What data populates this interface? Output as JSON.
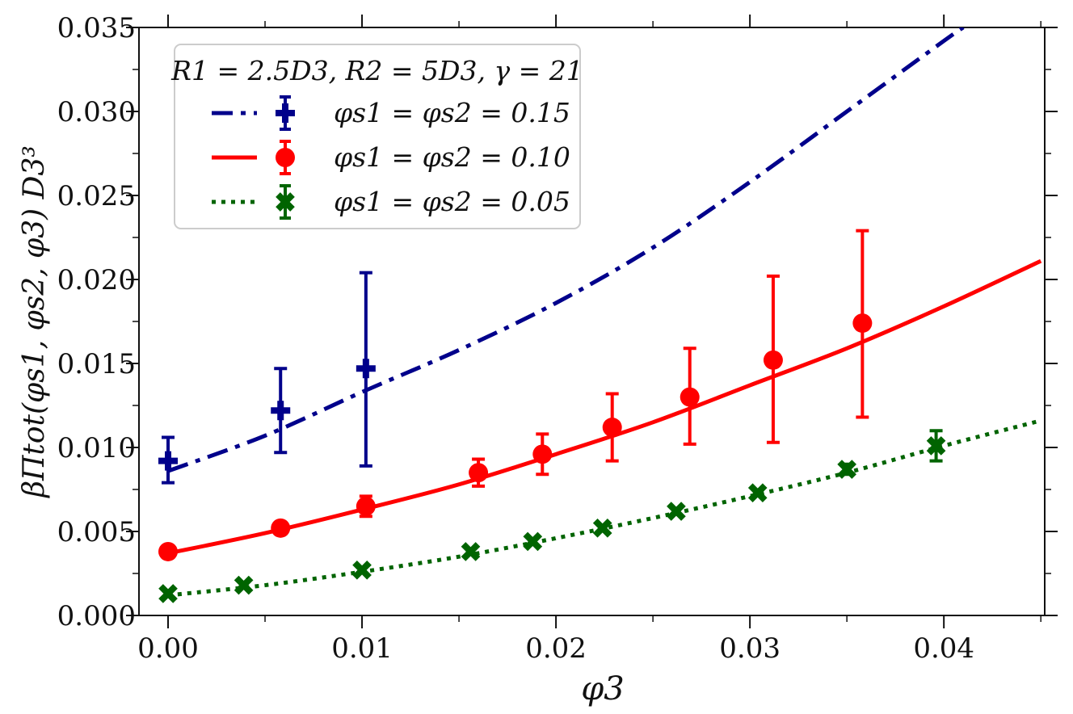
{
  "chart_data": {
    "type": "line",
    "title": "",
    "xlabel": "φ3",
    "ylabel": "βΠtot(φs1, φs2, φ3) D3³",
    "xlim": [
      -0.0015,
      0.0452
    ],
    "ylim": [
      0.0,
      0.035
    ],
    "xticks": [
      0.0,
      0.01,
      0.02,
      0.03,
      0.04
    ],
    "xtick_labels": [
      "0.00",
      "0.01",
      "0.02",
      "0.03",
      "0.04"
    ],
    "yticks": [
      0.0,
      0.005,
      0.01,
      0.015,
      0.02,
      0.025,
      0.03,
      0.035
    ],
    "ytick_labels": [
      "0.000",
      "0.005",
      "0.010",
      "0.015",
      "0.020",
      "0.025",
      "0.030",
      "0.035"
    ],
    "legend_title": "R1 = 2.5D3, R2 = 5D3, γ = 21",
    "legend_position": "top-left",
    "series": [
      {
        "name": "φs1 = φs2 = 0.15",
        "color": "#00008b",
        "marker": "plus",
        "line_style": "dashdot",
        "points": [
          {
            "x": 0.0,
            "y": 0.0092,
            "ylo": 0.0079,
            "yhi": 0.0106
          },
          {
            "x": 0.0058,
            "y": 0.0122,
            "ylo": 0.0097,
            "yhi": 0.0147
          },
          {
            "x": 0.0102,
            "y": 0.0147,
            "ylo": 0.0089,
            "yhi": 0.0204
          }
        ],
        "curve": {
          "x": [
            0.0,
            0.005,
            0.01,
            0.015,
            0.02,
            0.025,
            0.03,
            0.035,
            0.04,
            0.041
          ],
          "y": [
            0.0086,
            0.0107,
            0.0133,
            0.0158,
            0.0186,
            0.0219,
            0.0258,
            0.03,
            0.0342,
            0.035
          ]
        }
      },
      {
        "name": "φs1 = φs2 = 0.10",
        "color": "#ff0000",
        "marker": "circle",
        "line_style": "solid",
        "points": [
          {
            "x": 0.0,
            "y": 0.0038,
            "ylo": 0.0038,
            "yhi": 0.0038
          },
          {
            "x": 0.0058,
            "y": 0.0052,
            "ylo": 0.0052,
            "yhi": 0.0052
          },
          {
            "x": 0.0102,
            "y": 0.0065,
            "ylo": 0.0059,
            "yhi": 0.0071
          },
          {
            "x": 0.016,
            "y": 0.0085,
            "ylo": 0.0077,
            "yhi": 0.0093
          },
          {
            "x": 0.0193,
            "y": 0.0096,
            "ylo": 0.0084,
            "yhi": 0.0108
          },
          {
            "x": 0.0229,
            "y": 0.0112,
            "ylo": 0.0092,
            "yhi": 0.0132
          },
          {
            "x": 0.0269,
            "y": 0.013,
            "ylo": 0.0102,
            "yhi": 0.0159
          },
          {
            "x": 0.0312,
            "y": 0.0152,
            "ylo": 0.0103,
            "yhi": 0.0202
          },
          {
            "x": 0.0358,
            "y": 0.0174,
            "ylo": 0.0118,
            "yhi": 0.0229
          }
        ],
        "curve": {
          "x": [
            0.0,
            0.005,
            0.01,
            0.015,
            0.02,
            0.025,
            0.03,
            0.035,
            0.04,
            0.045
          ],
          "y": [
            0.0037,
            0.0049,
            0.0063,
            0.0078,
            0.0096,
            0.0115,
            0.0137,
            0.0159,
            0.0184,
            0.0211
          ]
        }
      },
      {
        "name": "φs1 = φs2 = 0.05",
        "color": "#006400",
        "marker": "x",
        "line_style": "dotted",
        "points": [
          {
            "x": 0.0,
            "y": 0.0013,
            "ylo": 0.0013,
            "yhi": 0.0013
          },
          {
            "x": 0.0039,
            "y": 0.0018,
            "ylo": 0.0018,
            "yhi": 0.0018
          },
          {
            "x": 0.01,
            "y": 0.0027,
            "ylo": 0.0027,
            "yhi": 0.0027
          },
          {
            "x": 0.0156,
            "y": 0.0038,
            "ylo": 0.0038,
            "yhi": 0.0038
          },
          {
            "x": 0.0188,
            "y": 0.0044,
            "ylo": 0.0044,
            "yhi": 0.0044
          },
          {
            "x": 0.0224,
            "y": 0.0052,
            "ylo": 0.0052,
            "yhi": 0.0052
          },
          {
            "x": 0.0262,
            "y": 0.0062,
            "ylo": 0.0062,
            "yhi": 0.0062
          },
          {
            "x": 0.0304,
            "y": 0.0073,
            "ylo": 0.0073,
            "yhi": 0.0073
          },
          {
            "x": 0.035,
            "y": 0.0087,
            "ylo": 0.0084,
            "yhi": 0.009
          },
          {
            "x": 0.0396,
            "y": 0.0101,
            "ylo": 0.0092,
            "yhi": 0.011
          }
        ],
        "curve": {
          "x": [
            0.0,
            0.005,
            0.01,
            0.015,
            0.02,
            0.025,
            0.03,
            0.035,
            0.04,
            0.045
          ],
          "y": [
            0.0012,
            0.0018,
            0.0026,
            0.0035,
            0.0046,
            0.0058,
            0.0071,
            0.0085,
            0.0101,
            0.0116
          ]
        }
      }
    ]
  }
}
